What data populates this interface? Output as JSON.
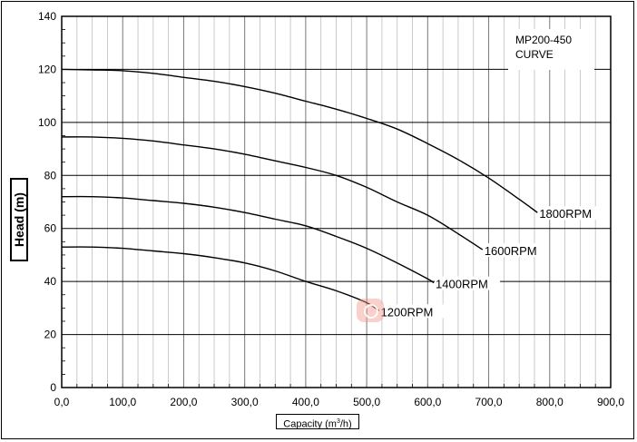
{
  "chart_data": {
    "type": "line",
    "title_lines": [
      "MP200-450",
      "CURVE"
    ],
    "xlabel": "Capacity (m",
    "xlabel_sup": "3",
    "xlabel_tail": "/h)",
    "ylabel": "Head (m)",
    "xlim": [
      0,
      900
    ],
    "ylim": [
      0,
      140
    ],
    "x_ticks": [
      "0,0",
      "100,0",
      "200,0",
      "300,0",
      "400,0",
      "500,0",
      "600,0",
      "700,0",
      "800,0",
      "900,0"
    ],
    "y_ticks": [
      "0",
      "20",
      "40",
      "60",
      "80",
      "100",
      "120",
      "140"
    ],
    "grid": true,
    "series": [
      {
        "name": "1800RPM",
        "x": [
          0,
          50,
          100,
          150,
          200,
          250,
          300,
          350,
          400,
          450,
          500,
          550,
          600,
          650,
          700,
          750,
          780
        ],
        "y": [
          120,
          119.8,
          119.5,
          118.5,
          117,
          115.5,
          113.5,
          111,
          108,
          105,
          101.5,
          97.5,
          92,
          86,
          79,
          71,
          66
        ]
      },
      {
        "name": "1600RPM",
        "x": [
          0,
          50,
          100,
          150,
          200,
          250,
          300,
          350,
          400,
          450,
          500,
          550,
          600,
          650,
          690
        ],
        "y": [
          94.5,
          94.5,
          94,
          93,
          91.5,
          90,
          88,
          85.5,
          83,
          80,
          75.5,
          70,
          65,
          58,
          52
        ]
      },
      {
        "name": "1400RPM",
        "x": [
          0,
          50,
          100,
          150,
          200,
          250,
          300,
          350,
          400,
          450,
          500,
          550,
          600,
          610
        ],
        "y": [
          72,
          72,
          71.5,
          70.5,
          69.5,
          68,
          66,
          63.5,
          61,
          57,
          52.5,
          47,
          41,
          39.5
        ]
      },
      {
        "name": "1200RPM",
        "x": [
          0,
          50,
          100,
          150,
          200,
          250,
          300,
          350,
          400,
          450,
          500,
          520
        ],
        "y": [
          53,
          53,
          52.5,
          51.5,
          50.5,
          49,
          47,
          44,
          40,
          36.5,
          32,
          29
        ]
      }
    ]
  }
}
